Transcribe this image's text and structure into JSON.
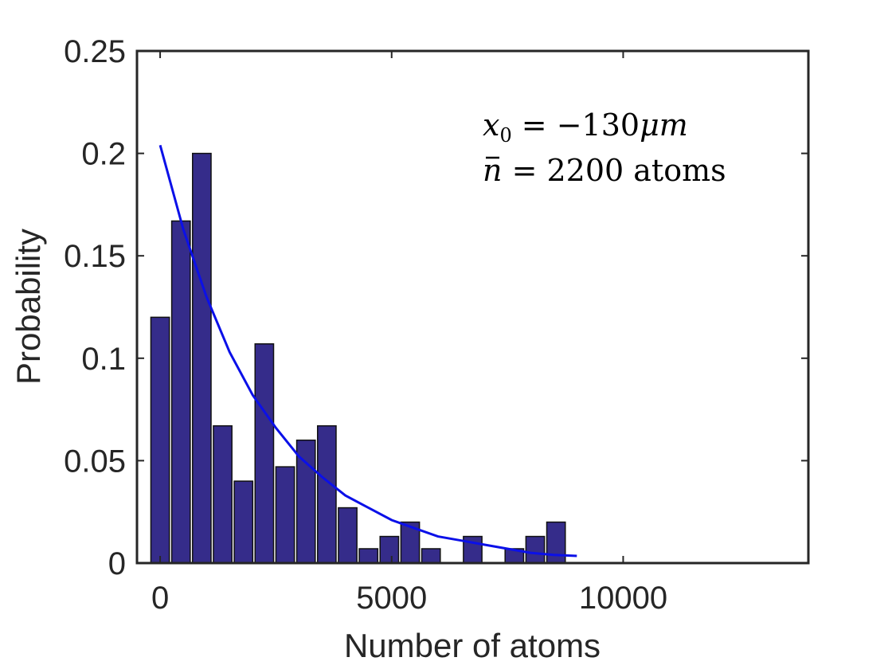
{
  "chart_data": {
    "type": "bar",
    "xlabel": "Number of atoms",
    "ylabel": "Probability",
    "xlim": [
      -500,
      14000
    ],
    "ylim": [
      0,
      0.25
    ],
    "x_ticks": [
      0,
      5000,
      10000
    ],
    "x_tick_labels": [
      "0",
      "5000",
      "10000"
    ],
    "y_ticks": [
      0,
      0.05,
      0.1,
      0.15,
      0.2,
      0.25
    ],
    "y_tick_labels": [
      "0",
      "0.05",
      "0.1",
      "0.15",
      "0.2",
      "0.25"
    ],
    "bar_width": 400,
    "bars": {
      "x": [
        0,
        450,
        900,
        1350,
        1800,
        2250,
        2700,
        3150,
        3600,
        4050,
        4500,
        4950,
        5400,
        5850,
        6750,
        7650,
        8100,
        8550
      ],
      "values": [
        0.12,
        0.167,
        0.2,
        0.067,
        0.04,
        0.107,
        0.047,
        0.06,
        0.067,
        0.027,
        0.007,
        0.013,
        0.02,
        0.007,
        0.013,
        0.007,
        0.013,
        0.02
      ]
    },
    "fit_curve": {
      "x": [
        0,
        500,
        1000,
        1500,
        2000,
        2500,
        3000,
        3500,
        4000,
        4500,
        5000,
        5500,
        6000,
        6500,
        7000,
        7500,
        8000,
        8500,
        9000
      ],
      "values": [
        0.204,
        0.163,
        0.13,
        0.103,
        0.082,
        0.066,
        0.052,
        0.042,
        0.033,
        0.027,
        0.021,
        0.017,
        0.013,
        0.011,
        0.009,
        0.007,
        0.005,
        0.004,
        0.0035
      ]
    },
    "annotations": {
      "line1": {
        "var": "x",
        "sub": "0",
        "eq": " = −130",
        "unit": "μm"
      },
      "line2": {
        "var": "n",
        "eq": " = 2200 atoms"
      }
    },
    "colors": {
      "bar": "#352c8a",
      "bar_edge": "#111111",
      "curve": "#0b10e8",
      "axis": "#262626"
    },
    "grid": false
  }
}
